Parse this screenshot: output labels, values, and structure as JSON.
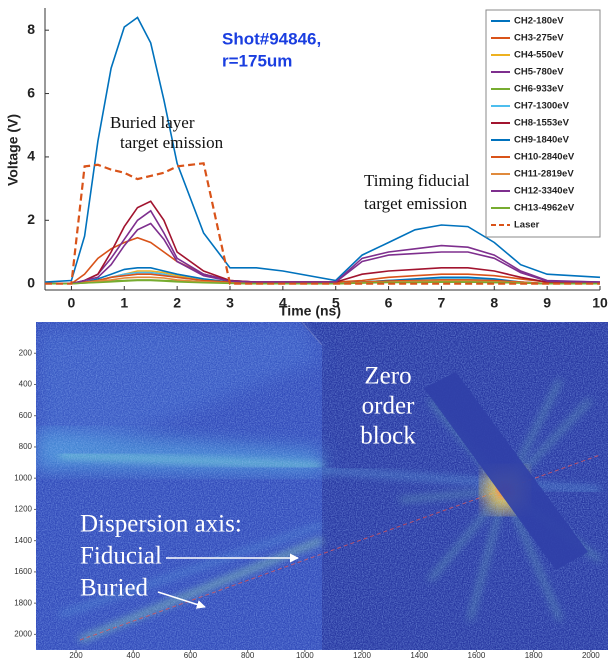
{
  "chart_data": [
    {
      "type": "line",
      "x_label": "Time (ns)",
      "y_label": "Voltage (V)",
      "x": [
        -0.5,
        0,
        0.25,
        0.5,
        0.75,
        1,
        1.25,
        1.5,
        1.75,
        2,
        2.5,
        3,
        3.5,
        4,
        5,
        5.5,
        6,
        6.5,
        7,
        7.5,
        8,
        8.5,
        9,
        10
      ],
      "xlim": [
        -0.5,
        10
      ],
      "ylim": [
        -0.2,
        8.7
      ],
      "xticks": [
        0,
        1,
        2,
        3,
        4,
        5,
        6,
        7,
        8,
        9,
        10
      ],
      "yticks": [
        0,
        2,
        4,
        6,
        8
      ],
      "legend": "upper right",
      "series": [
        {
          "name": "CH2-180eV",
          "color": "#0072bd",
          "values": [
            0.05,
            0.1,
            1.5,
            4.5,
            6.8,
            8.1,
            8.4,
            7.6,
            5.8,
            3.8,
            1.6,
            0.5,
            0.5,
            0.4,
            0.1,
            0.9,
            1.3,
            1.7,
            1.85,
            1.8,
            1.3,
            0.6,
            0.3,
            0.2
          ]
        },
        {
          "name": "CH3-275eV",
          "color": "#d95319",
          "values": [
            0,
            0,
            0.3,
            0.8,
            1.1,
            1.3,
            1.45,
            1.3,
            1.0,
            0.7,
            0.3,
            0.1,
            0.05,
            0.05,
            0.05,
            0.1,
            0.2,
            0.25,
            0.3,
            0.3,
            0.25,
            0.15,
            0.05,
            0
          ]
        },
        {
          "name": "CH4-550eV",
          "color": "#edb120",
          "values": [
            0,
            0,
            0.05,
            0.1,
            0.2,
            0.3,
            0.4,
            0.4,
            0.35,
            0.25,
            0.1,
            0.05,
            0,
            0,
            0,
            0.05,
            0.1,
            0.1,
            0.12,
            0.12,
            0.1,
            0.05,
            0,
            0
          ]
        },
        {
          "name": "CH5-780eV",
          "color": "#7e2f8e",
          "values": [
            0,
            0,
            0.1,
            0.3,
            0.8,
            1.4,
            2.0,
            2.3,
            1.6,
            0.8,
            0.3,
            0.1,
            0.05,
            0.05,
            0.05,
            0.8,
            1.0,
            1.1,
            1.2,
            1.15,
            0.9,
            0.4,
            0.1,
            0.05
          ]
        },
        {
          "name": "CH6-933eV",
          "color": "#77ac30",
          "values": [
            0,
            0,
            0.02,
            0.05,
            0.08,
            0.1,
            0.12,
            0.12,
            0.1,
            0.08,
            0.05,
            0.02,
            0,
            0,
            0,
            0.02,
            0.05,
            0.05,
            0.05,
            0.05,
            0.04,
            0.02,
            0,
            0
          ]
        },
        {
          "name": "CH7-1300eV",
          "color": "#4dbeee",
          "values": [
            0,
            0,
            0.05,
            0.1,
            0.2,
            0.3,
            0.35,
            0.35,
            0.3,
            0.2,
            0.1,
            0.05,
            0,
            0,
            0,
            0.05,
            0.1,
            0.12,
            0.15,
            0.15,
            0.12,
            0.05,
            0,
            0
          ]
        },
        {
          "name": "CH8-1553eV",
          "color": "#a2142f",
          "values": [
            0,
            0,
            0.1,
            0.3,
            1.0,
            1.8,
            2.4,
            2.6,
            2.0,
            1.0,
            0.4,
            0.1,
            0.05,
            0.05,
            0.05,
            0.3,
            0.4,
            0.45,
            0.5,
            0.5,
            0.4,
            0.2,
            0.05,
            0
          ]
        },
        {
          "name": "CH9-1840eV",
          "color": "#0072bd",
          "values": [
            0,
            0,
            0.05,
            0.15,
            0.3,
            0.45,
            0.5,
            0.5,
            0.4,
            0.3,
            0.15,
            0.05,
            0,
            0,
            0,
            0.05,
            0.1,
            0.15,
            0.2,
            0.2,
            0.15,
            0.05,
            0,
            0
          ]
        },
        {
          "name": "CH10-2840eV",
          "color": "#d95319",
          "values": [
            0,
            0,
            0.05,
            0.1,
            0.2,
            0.25,
            0.3,
            0.3,
            0.25,
            0.2,
            0.1,
            0.05,
            0,
            0,
            0,
            0.05,
            0.08,
            0.1,
            0.12,
            0.12,
            0.1,
            0.05,
            0,
            0
          ]
        },
        {
          "name": "CH11-2819eV",
          "color": "#e08a3c",
          "values": [
            0,
            0,
            0.03,
            0.08,
            0.12,
            0.18,
            0.2,
            0.2,
            0.18,
            0.12,
            0.06,
            0.02,
            0,
            0,
            0,
            0.03,
            0.05,
            0.07,
            0.08,
            0.08,
            0.06,
            0.03,
            0,
            0
          ]
        },
        {
          "name": "CH12-3340eV",
          "color": "#7e2f8e",
          "values": [
            0,
            0,
            0.1,
            0.2,
            0.6,
            1.2,
            1.7,
            1.9,
            1.4,
            0.7,
            0.25,
            0.08,
            0.05,
            0.05,
            0.05,
            0.7,
            0.9,
            0.95,
            1.0,
            1.0,
            0.8,
            0.35,
            0.08,
            0.05
          ]
        },
        {
          "name": "CH13-4962eV",
          "color": "#77ac30",
          "values": [
            0,
            0,
            0.02,
            0.04,
            0.06,
            0.08,
            0.1,
            0.1,
            0.08,
            0.06,
            0.03,
            0.01,
            0,
            0,
            0,
            0.02,
            0.04,
            0.04,
            0.05,
            0.05,
            0.04,
            0.02,
            0,
            0
          ]
        },
        {
          "name": "Laser",
          "color": "#d95319",
          "dashed": true,
          "values": [
            0,
            0,
            3.7,
            3.75,
            3.6,
            3.5,
            3.3,
            3.4,
            3.5,
            3.7,
            3.8,
            0,
            0,
            0,
            0,
            0,
            0,
            0,
            0,
            0,
            0,
            0,
            0,
            0
          ]
        }
      ],
      "annotations": [
        [
          "Shot#94846,",
          "r=175um"
        ],
        [
          "Buried layer",
          "target emission"
        ],
        [
          "Timing fiducial",
          "target emission"
        ]
      ]
    },
    {
      "type": "image",
      "xlim": [
        60,
        2060
      ],
      "ylim": [
        0,
        2100
      ],
      "xticks": [
        200,
        400,
        600,
        800,
        1000,
        1200,
        1400,
        1600,
        1800,
        2000
      ],
      "yticks": [
        200,
        400,
        600,
        800,
        1000,
        1200,
        1400,
        1600,
        1800,
        2000
      ],
      "annotations": [
        [
          "Zero",
          "order",
          "block"
        ],
        [
          "Dispersion axis:",
          "Fiducial",
          "Buried"
        ]
      ]
    }
  ]
}
